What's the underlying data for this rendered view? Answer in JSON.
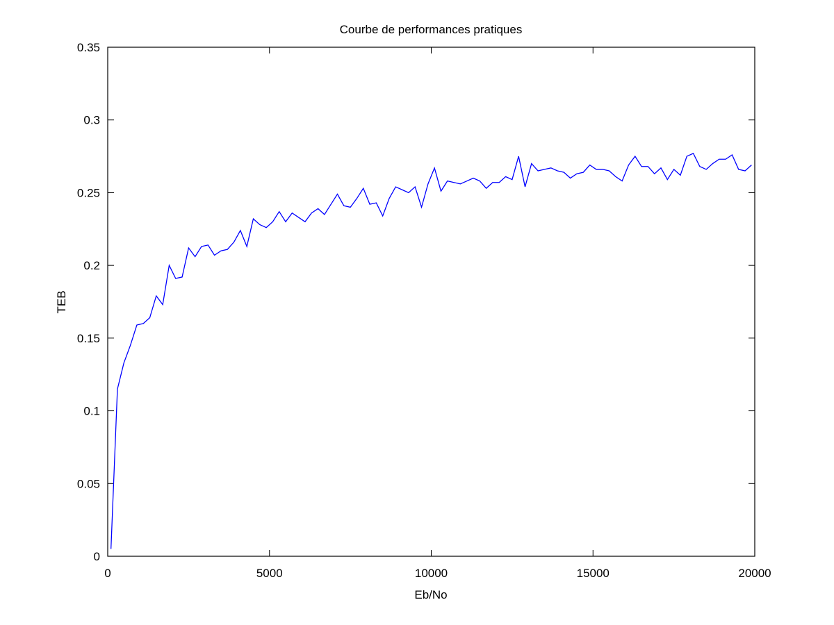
{
  "chart_data": {
    "type": "line",
    "title": "Courbe de performances pratiques",
    "xlabel": "Eb/No",
    "ylabel": "TEB",
    "xlim": [
      0,
      20000
    ],
    "ylim": [
      0,
      0.35
    ],
    "x_ticks": [
      0,
      5000,
      10000,
      15000,
      20000
    ],
    "x_tick_labels": [
      "0",
      "5000",
      "10000",
      "15000",
      "20000"
    ],
    "y_ticks": [
      0,
      0.05,
      0.1,
      0.15,
      0.2,
      0.25,
      0.3,
      0.35
    ],
    "y_tick_labels": [
      "0",
      "0.05",
      "0.1",
      "0.15",
      "0.2",
      "0.25",
      "0.3",
      "0.35"
    ],
    "grid": false,
    "line_color": "#0000ff",
    "series": [
      {
        "x": [
          100,
          300,
          500,
          700,
          900,
          1100,
          1300,
          1500,
          1700,
          1900,
          2100,
          2300,
          2500,
          2700,
          2900,
          3100,
          3300,
          3500,
          3700,
          3900,
          4100,
          4300,
          4500,
          4700,
          4900,
          5100,
          5300,
          5500,
          5700,
          5900,
          6100,
          6300,
          6500,
          6700,
          6900,
          7100,
          7300,
          7500,
          7700,
          7900,
          8100,
          8300,
          8500,
          8700,
          8900,
          9100,
          9300,
          9500,
          9700,
          9900,
          10100,
          10300,
          10500,
          10700,
          10900,
          11100,
          11300,
          11500,
          11700,
          11900,
          12100,
          12300,
          12500,
          12700,
          12900,
          13100,
          13300,
          13500,
          13700,
          13900,
          14100,
          14300,
          14500,
          14700,
          14900,
          15100,
          15300,
          15500,
          15700,
          15900,
          16100,
          16300,
          16500,
          16700,
          16900,
          17100,
          17300,
          17500,
          17700,
          17900,
          18100,
          18300,
          18500,
          18700,
          18900,
          19100,
          19300,
          19500,
          19700,
          19900
        ],
        "y": [
          0.005,
          0.115,
          0.133,
          0.145,
          0.159,
          0.16,
          0.164,
          0.179,
          0.173,
          0.2,
          0.191,
          0.192,
          0.212,
          0.206,
          0.213,
          0.214,
          0.207,
          0.21,
          0.211,
          0.216,
          0.224,
          0.213,
          0.232,
          0.228,
          0.226,
          0.23,
          0.237,
          0.23,
          0.236,
          0.233,
          0.23,
          0.236,
          0.239,
          0.235,
          0.242,
          0.249,
          0.241,
          0.24,
          0.246,
          0.253,
          0.242,
          0.243,
          0.234,
          0.246,
          0.254,
          0.252,
          0.25,
          0.254,
          0.24,
          0.256,
          0.267,
          0.251,
          0.258,
          0.257,
          0.256,
          0.258,
          0.26,
          0.258,
          0.253,
          0.257,
          0.257,
          0.261,
          0.259,
          0.275,
          0.254,
          0.27,
          0.265,
          0.266,
          0.267,
          0.265,
          0.264,
          0.26,
          0.263,
          0.264,
          0.269,
          0.266,
          0.266,
          0.265,
          0.261,
          0.258,
          0.269,
          0.275,
          0.268,
          0.268,
          0.263,
          0.267,
          0.259,
          0.266,
          0.262,
          0.275,
          0.277,
          0.268,
          0.266,
          0.27,
          0.273,
          0.273,
          0.276,
          0.266,
          0.265,
          0.269
        ]
      }
    ]
  }
}
